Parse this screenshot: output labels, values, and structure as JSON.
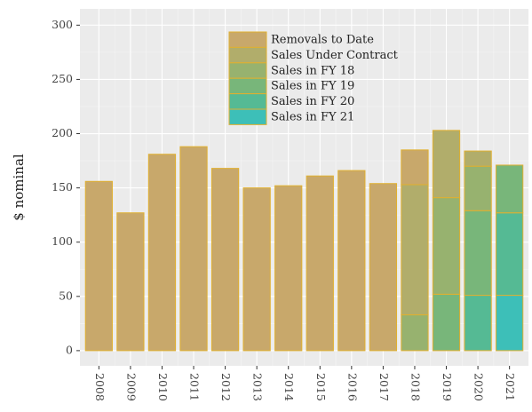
{
  "chart_data": {
    "type": "bar",
    "stacked": true,
    "y_label": "$ nominal",
    "categories": [
      "2008",
      "2009",
      "2010",
      "2011",
      "2012",
      "2013",
      "2014",
      "2015",
      "2016",
      "2017",
      "2018",
      "2019",
      "2020",
      "2021"
    ],
    "series": [
      {
        "name": "Removals to Date",
        "color": "#c8a86b",
        "values": [
          156,
          127,
          181,
          188,
          168,
          150,
          152,
          161,
          166,
          154,
          32,
          null,
          null,
          null
        ]
      },
      {
        "name": "Sales Under Contract",
        "color": "#b1ad6b",
        "values": [
          null,
          null,
          null,
          null,
          null,
          null,
          null,
          null,
          null,
          null,
          120,
          62,
          14,
          null
        ]
      },
      {
        "name": "Sales in FY 18",
        "color": "#97b26f",
        "values": [
          null,
          null,
          null,
          null,
          null,
          null,
          null,
          null,
          null,
          null,
          33,
          89,
          41,
          null
        ]
      },
      {
        "name": "Sales in FY 19",
        "color": "#78b67a",
        "values": [
          null,
          null,
          null,
          null,
          null,
          null,
          null,
          null,
          null,
          null,
          null,
          52,
          78,
          44
        ]
      },
      {
        "name": "Sales in FY 20",
        "color": "#55ba94",
        "values": [
          null,
          null,
          null,
          null,
          null,
          null,
          null,
          null,
          null,
          null,
          null,
          null,
          51,
          76
        ]
      },
      {
        "name": "Sales in FY 21",
        "color": "#3dbfb8",
        "values": [
          null,
          null,
          null,
          null,
          null,
          null,
          null,
          null,
          null,
          null,
          null,
          null,
          null,
          51
        ]
      }
    ],
    "border_color": "#e0b030",
    "ylim": [
      -14,
      315
    ],
    "yticks": [
      0,
      50,
      100,
      150,
      200,
      250,
      300
    ],
    "grid": true,
    "legend": "top"
  }
}
